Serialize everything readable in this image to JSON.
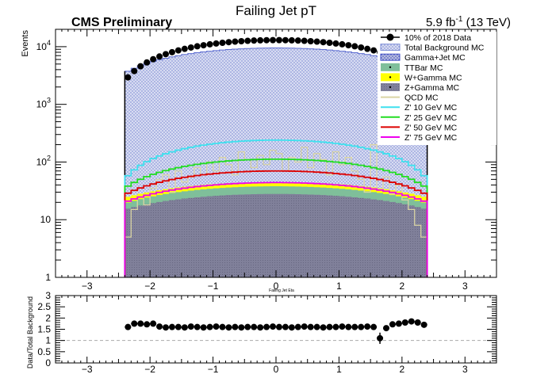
{
  "header": {
    "title": "Failing Jet pT",
    "experiment": "CMS Preliminary",
    "lumi_main": "5.9 fb",
    "lumi_exp": "-1",
    "lumi_energy": " (13 TeV)"
  },
  "legend": [
    {
      "label": "10% of 2018 Data",
      "style": "marker",
      "color": "#000000"
    },
    {
      "label": "Total Background MC",
      "style": "hatch",
      "color": "#7f8fd8"
    },
    {
      "label": "Gamma+Jet MC",
      "style": "hatch",
      "color": "#4452c8"
    },
    {
      "label": "TTBar MC",
      "style": "fill",
      "color": "#7fbf9a"
    },
    {
      "label": "W+Gamma MC",
      "style": "fill",
      "color": "#ffff00"
    },
    {
      "label": "Z+Gamma MC",
      "style": "fill",
      "color": "#7e7e98"
    },
    {
      "label": "QCD MC",
      "style": "line",
      "color": "#d9d4a4"
    },
    {
      "label": "Z' 10 GeV MC",
      "style": "line",
      "color": "#3fe0ee"
    },
    {
      "label": "Z' 25 GeV MC",
      "style": "line",
      "color": "#22dd22"
    },
    {
      "label": "Z' 50 GeV MC",
      "style": "line",
      "color": "#dd0000"
    },
    {
      "label": "Z' 75 GeV MC",
      "style": "line",
      "color": "#ee00ee"
    }
  ],
  "chart_data": [
    {
      "type": "histogram",
      "title": "Failing Jet pT",
      "xlabel": "Failing Jet Eta",
      "ylabel": "Events",
      "xlim": [
        -3.5,
        3.5
      ],
      "ylim": [
        1,
        20000
      ],
      "yscale": "log",
      "xticks": [
        "-3",
        "-2",
        "-1",
        "0",
        "1",
        "2",
        "3"
      ],
      "yticks": [
        "1",
        "10",
        "10^2",
        "10^3",
        "10^4"
      ],
      "bin_range": [
        -2.4,
        2.4
      ],
      "bins": 48,
      "grid": false,
      "legend_position": "top-right",
      "series": [
        {
          "name": "10% of 2018 Data",
          "kind": "points",
          "shape": "bell",
          "edge": 2500,
          "center": 13000
        },
        {
          "name": "Total Background MC",
          "kind": "hatched-stack",
          "shape": "bell",
          "edge": 3500,
          "center": 9500
        },
        {
          "name": "Z+Gamma MC",
          "kind": "filled",
          "shape": "bell",
          "edge": 15,
          "center": 28
        },
        {
          "name": "TTBar MC",
          "kind": "filled",
          "shape": "bell",
          "edge": 19,
          "center": 38
        },
        {
          "name": "W+Gamma MC",
          "kind": "filled",
          "shape": "bell",
          "edge": 24,
          "center": 45
        },
        {
          "name": "QCD MC",
          "kind": "line",
          "values": [
            5,
            15,
            25,
            18,
            35,
            50,
            60,
            30,
            70,
            45,
            55,
            80,
            60,
            100,
            70,
            120,
            90,
            60,
            150,
            110,
            80,
            130,
            90,
            160,
            140,
            70,
            120,
            100,
            180,
            80,
            140,
            110,
            60,
            150,
            90,
            120,
            70,
            50,
            30,
            200,
            35,
            55,
            28,
            40,
            22,
            15,
            8,
            5
          ]
        },
        {
          "name": "Z' 10 GeV MC",
          "kind": "line",
          "shape": "bell",
          "edge": 50,
          "center": 240
        },
        {
          "name": "Z' 25 GeV MC",
          "kind": "line",
          "shape": "bell",
          "edge": 35,
          "center": 112
        },
        {
          "name": "Z' 50 GeV MC",
          "kind": "line",
          "shape": "bell",
          "edge": 27,
          "center": 70
        },
        {
          "name": "Z' 75 GeV MC",
          "kind": "line",
          "shape": "bell",
          "edge": 20,
          "center": 44
        }
      ]
    },
    {
      "type": "scatter",
      "xlabel": "",
      "ylabel": "Data/Total Background",
      "xlim": [
        -3.5,
        3.5
      ],
      "ylim": [
        0,
        3
      ],
      "yticks": [
        "0",
        "0.5",
        "1",
        "1.5",
        "2",
        "2.5",
        "3"
      ],
      "xticks": [
        "-3",
        "-2",
        "-1",
        "0",
        "1",
        "2",
        "3"
      ],
      "reference_line": 1,
      "x": [
        -2.35,
        -2.25,
        -2.15,
        -2.05,
        -1.95,
        -1.85,
        -1.75,
        -1.65,
        -1.55,
        -1.45,
        -1.35,
        -1.25,
        -1.15,
        -1.05,
        -0.95,
        -0.85,
        -0.75,
        -0.65,
        -0.55,
        -0.45,
        -0.35,
        -0.25,
        -0.15,
        -0.05,
        0.05,
        0.15,
        0.25,
        0.35,
        0.45,
        0.55,
        0.65,
        0.75,
        0.85,
        0.95,
        1.05,
        1.15,
        1.25,
        1.35,
        1.45,
        1.55,
        1.65,
        1.75,
        1.85,
        1.95,
        2.05,
        2.15,
        2.25,
        2.35
      ],
      "values": [
        1.6,
        1.75,
        1.75,
        1.72,
        1.75,
        1.62,
        1.58,
        1.6,
        1.6,
        1.58,
        1.62,
        1.6,
        1.58,
        1.6,
        1.62,
        1.6,
        1.58,
        1.6,
        1.58,
        1.6,
        1.6,
        1.58,
        1.6,
        1.62,
        1.6,
        1.6,
        1.58,
        1.6,
        1.62,
        1.6,
        1.6,
        1.58,
        1.6,
        1.6,
        1.62,
        1.6,
        1.6,
        1.6,
        1.62,
        1.6,
        1.1,
        1.55,
        1.72,
        1.75,
        1.8,
        1.85,
        1.8,
        1.7
      ],
      "errors": [
        0.05,
        0.05,
        0.05,
        0.05,
        0.05,
        0.05,
        0.05,
        0.05,
        0.05,
        0.05,
        0.05,
        0.05,
        0.05,
        0.05,
        0.05,
        0.05,
        0.05,
        0.05,
        0.05,
        0.05,
        0.05,
        0.05,
        0.05,
        0.05,
        0.05,
        0.05,
        0.05,
        0.05,
        0.05,
        0.05,
        0.05,
        0.05,
        0.05,
        0.05,
        0.05,
        0.05,
        0.05,
        0.05,
        0.05,
        0.05,
        0.25,
        0.05,
        0.05,
        0.05,
        0.05,
        0.05,
        0.05,
        0.05
      ]
    }
  ]
}
